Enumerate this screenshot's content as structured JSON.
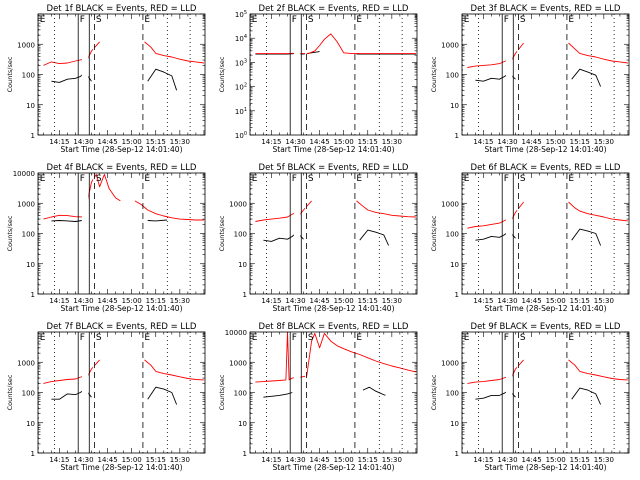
{
  "figure": {
    "colors": {
      "events": "#000000",
      "lld": "#ff0000",
      "axes": "#000000"
    },
    "common": {
      "xlabel": "Start Time (28-Sep-12 14:01:40)",
      "ylabel": "Counts/sec",
      "x_ticks": [
        "14:15",
        "14:30",
        "14:45",
        "15:00",
        "15:15",
        "15:30"
      ],
      "y_ticks": [
        "1",
        "10",
        "100",
        "1000",
        "10000"
      ],
      "marker_labels": [
        "E",
        "F",
        "S",
        "E"
      ]
    }
  },
  "chart_data": [
    {
      "type": "line",
      "title": "Det 1f BLACK = Events, RED = LLD",
      "x_axis": "time",
      "y_scale": "log",
      "ylim": [
        1,
        10000
      ],
      "ytick_values": [
        1,
        10,
        100,
        1000
      ],
      "series": [
        {
          "name": "Events",
          "color": "#000000",
          "x": [
            "14:10",
            "14:15",
            "14:20",
            "14:25",
            "14:28",
            "14:31",
            "14:35"
          ],
          "y": [
            60,
            55,
            70,
            75,
            85,
            120,
            60
          ]
        },
        {
          "name": "LLD",
          "color": "#ff0000",
          "x": [
            "14:05",
            "14:10",
            "14:15",
            "14:20",
            "14:25",
            "14:30",
            "14:32",
            "14:35",
            "14:40"
          ],
          "y": [
            200,
            260,
            230,
            240,
            280,
            320,
            280,
            600,
            1200
          ]
        },
        {
          "name": "Events",
          "color": "#000000",
          "x": [
            "15:10",
            "15:15",
            "15:20",
            "15:25",
            "15:28"
          ],
          "y": [
            60,
            150,
            120,
            90,
            30
          ]
        },
        {
          "name": "LLD",
          "color": "#ff0000",
          "x": [
            "15:08",
            "15:12",
            "15:15",
            "15:20",
            "15:25",
            "15:30",
            "15:35",
            "15:40",
            "15:45"
          ],
          "y": [
            1200,
            800,
            500,
            420,
            380,
            320,
            280,
            260,
            240
          ]
        }
      ]
    },
    {
      "type": "line",
      "title": "Det 2f BLACK = Events, RED = LLD",
      "x_axis": "time",
      "y_scale": "log",
      "ylim": [
        1,
        100000
      ],
      "ytick_values": [
        1,
        10,
        100,
        1000,
        10000,
        100000
      ],
      "ytick_labels": [
        "10^0",
        "10^1",
        "10^2",
        "10^3",
        "10^4",
        "10^5"
      ],
      "series": [
        {
          "name": "Events",
          "color": "#000000",
          "x": [
            "14:05",
            "14:15",
            "14:25",
            "14:30",
            "14:35",
            "14:40",
            "14:45"
          ],
          "y": [
            2200,
            2200,
            2200,
            2300,
            2200,
            2500,
            2800
          ]
        },
        {
          "name": "LLD",
          "color": "#ff0000",
          "x": [
            "14:05",
            "14:15",
            "14:25",
            "14:30",
            "14:35",
            "14:38",
            "14:42",
            "14:45",
            "14:48",
            "14:52",
            "14:56",
            "15:00",
            "15:05",
            "15:10"
          ],
          "y": [
            2300,
            2300,
            2300,
            2400,
            2300,
            2300,
            3000,
            5000,
            9000,
            15000,
            7000,
            2500,
            2300,
            2300
          ]
        },
        {
          "name": "Events",
          "color": "#000000",
          "x": [
            "15:08",
            "15:15",
            "15:25",
            "15:35",
            "15:45"
          ],
          "y": [
            2200,
            2200,
            2200,
            2200,
            2200
          ]
        },
        {
          "name": "LLD",
          "color": "#ff0000",
          "x": [
            "15:08",
            "15:15",
            "15:25",
            "15:35",
            "15:45"
          ],
          "y": [
            2300,
            2300,
            2300,
            2300,
            2300
          ]
        }
      ]
    },
    {
      "type": "line",
      "title": "Det 3f BLACK = Events, RED = LLD",
      "x_axis": "time",
      "y_scale": "log",
      "ylim": [
        1,
        10000
      ],
      "ytick_values": [
        1,
        10,
        100,
        1000
      ],
      "series": [
        {
          "name": "Events",
          "color": "#000000",
          "x": [
            "14:10",
            "14:15",
            "14:20",
            "14:25",
            "14:28",
            "14:31",
            "14:35"
          ],
          "y": [
            65,
            60,
            75,
            70,
            85,
            110,
            70
          ]
        },
        {
          "name": "LLD",
          "color": "#ff0000",
          "x": [
            "14:05",
            "14:10",
            "14:15",
            "14:20",
            "14:25",
            "14:30",
            "14:32",
            "14:35",
            "14:40"
          ],
          "y": [
            170,
            190,
            200,
            210,
            230,
            300,
            260,
            500,
            1100
          ]
        },
        {
          "name": "Events",
          "color": "#000000",
          "x": [
            "15:10",
            "15:15",
            "15:20",
            "15:25",
            "15:28"
          ],
          "y": [
            70,
            150,
            120,
            95,
            40
          ]
        },
        {
          "name": "LLD",
          "color": "#ff0000",
          "x": [
            "15:08",
            "15:12",
            "15:15",
            "15:20",
            "15:25",
            "15:30",
            "15:35",
            "15:40",
            "15:45"
          ],
          "y": [
            1100,
            700,
            500,
            420,
            380,
            320,
            280,
            260,
            240
          ]
        }
      ]
    },
    {
      "type": "line",
      "title": "Det 4f BLACK = Events, RED = LLD",
      "x_axis": "time",
      "y_scale": "log",
      "ylim": [
        1,
        10000
      ],
      "ytick_values": [
        1,
        10,
        100,
        1000,
        10000
      ],
      "series": [
        {
          "name": "Events",
          "color": "#000000",
          "x": [
            "14:10",
            "14:15",
            "14:20",
            "14:25",
            "14:29"
          ],
          "y": [
            260,
            270,
            260,
            250,
            270
          ]
        },
        {
          "name": "LLD",
          "color": "#ff0000",
          "x": [
            "14:05",
            "14:10",
            "14:15",
            "14:20",
            "14:25",
            "14:30",
            "14:32",
            "14:35",
            "14:38",
            "14:40",
            "14:43",
            "14:46",
            "14:50",
            "14:53"
          ],
          "y": [
            300,
            350,
            400,
            390,
            360,
            350,
            900,
            5000,
            9000,
            3500,
            9000,
            3000,
            1500,
            1200
          ]
        },
        {
          "name": "Events",
          "color": "#000000",
          "x": [
            "15:10",
            "15:15",
            "15:22"
          ],
          "y": [
            270,
            260,
            280
          ]
        },
        {
          "name": "LLD",
          "color": "#ff0000",
          "x": [
            "15:02",
            "15:06",
            "15:10",
            "15:15",
            "15:20",
            "15:25",
            "15:30",
            "15:35",
            "15:40",
            "15:45"
          ],
          "y": [
            1200,
            900,
            600,
            450,
            380,
            330,
            300,
            290,
            280,
            280
          ]
        }
      ]
    },
    {
      "type": "line",
      "title": "Det 5f BLACK = Events, RED = LLD",
      "x_axis": "time",
      "y_scale": "log",
      "ylim": [
        1,
        10000
      ],
      "ytick_values": [
        1,
        10,
        100,
        1000
      ],
      "series": [
        {
          "name": "Events",
          "color": "#000000",
          "x": [
            "14:10",
            "14:15",
            "14:20",
            "14:25",
            "14:28",
            "14:31",
            "14:35"
          ],
          "y": [
            60,
            55,
            70,
            65,
            80,
            110,
            65
          ]
        },
        {
          "name": "LLD",
          "color": "#ff0000",
          "x": [
            "14:05",
            "14:10",
            "14:15",
            "14:20",
            "14:25",
            "14:30",
            "14:32",
            "14:35",
            "14:40"
          ],
          "y": [
            250,
            280,
            300,
            320,
            350,
            500,
            380,
            600,
            1200
          ]
        },
        {
          "name": "Events",
          "color": "#000000",
          "x": [
            "15:10",
            "15:15",
            "15:20",
            "15:25",
            "15:28"
          ],
          "y": [
            60,
            130,
            110,
            90,
            40
          ]
        },
        {
          "name": "LLD",
          "color": "#ff0000",
          "x": [
            "15:08",
            "15:12",
            "15:15",
            "15:20",
            "15:25",
            "15:30",
            "15:35",
            "15:40",
            "15:45"
          ],
          "y": [
            1200,
            800,
            600,
            500,
            450,
            400,
            380,
            360,
            350
          ]
        }
      ]
    },
    {
      "type": "line",
      "title": "Det 6f BLACK = Events, RED = LLD",
      "x_axis": "time",
      "y_scale": "log",
      "ylim": [
        1,
        10000
      ],
      "ytick_values": [
        1,
        10,
        100,
        1000
      ],
      "series": [
        {
          "name": "Events",
          "color": "#000000",
          "x": [
            "14:10",
            "14:15",
            "14:20",
            "14:25",
            "14:28",
            "14:31",
            "14:35"
          ],
          "y": [
            60,
            65,
            80,
            75,
            90,
            120,
            70
          ]
        },
        {
          "name": "LLD",
          "color": "#ff0000",
          "x": [
            "14:05",
            "14:10",
            "14:15",
            "14:20",
            "14:25",
            "14:30",
            "14:32",
            "14:35",
            "14:40"
          ],
          "y": [
            150,
            170,
            180,
            200,
            220,
            300,
            250,
            500,
            1100
          ]
        },
        {
          "name": "Events",
          "color": "#000000",
          "x": [
            "15:10",
            "15:15",
            "15:20",
            "15:25",
            "15:28"
          ],
          "y": [
            60,
            140,
            120,
            100,
            40
          ]
        },
        {
          "name": "LLD",
          "color": "#ff0000",
          "x": [
            "15:08",
            "15:12",
            "15:15",
            "15:20",
            "15:25",
            "15:30",
            "15:35",
            "15:40",
            "15:45"
          ],
          "y": [
            1100,
            700,
            550,
            450,
            400,
            350,
            300,
            280,
            260
          ]
        }
      ]
    },
    {
      "type": "line",
      "title": "Det 7f BLACK = Events, RED = LLD",
      "x_axis": "time",
      "y_scale": "log",
      "ylim": [
        1,
        10000
      ],
      "ytick_values": [
        1,
        10,
        100,
        1000
      ],
      "series": [
        {
          "name": "Events",
          "color": "#000000",
          "x": [
            "14:10",
            "14:15",
            "14:20",
            "14:25",
            "14:28",
            "14:31",
            "14:35"
          ],
          "y": [
            60,
            60,
            90,
            85,
            100,
            130,
            70
          ]
        },
        {
          "name": "LLD",
          "color": "#ff0000",
          "x": [
            "14:05",
            "14:10",
            "14:15",
            "14:20",
            "14:25",
            "14:30",
            "14:32",
            "14:35",
            "14:40"
          ],
          "y": [
            200,
            230,
            250,
            270,
            280,
            350,
            300,
            600,
            1200
          ]
        },
        {
          "name": "Events",
          "color": "#000000",
          "x": [
            "15:10",
            "15:15",
            "15:20",
            "15:25",
            "15:28"
          ],
          "y": [
            60,
            150,
            130,
            100,
            40
          ]
        },
        {
          "name": "LLD",
          "color": "#ff0000",
          "x": [
            "15:08",
            "15:12",
            "15:15",
            "15:20",
            "15:25",
            "15:30",
            "15:35",
            "15:40",
            "15:45"
          ],
          "y": [
            1200,
            800,
            500,
            420,
            380,
            330,
            290,
            270,
            260
          ]
        }
      ]
    },
    {
      "type": "line",
      "title": "Det 8f BLACK = Events, RED = LLD",
      "x_axis": "time",
      "y_scale": "log",
      "ylim": [
        1,
        10000
      ],
      "ytick_values": [
        1,
        10,
        100,
        1000,
        10000
      ],
      "series": [
        {
          "name": "Events",
          "color": "#000000",
          "x": [
            "14:10",
            "14:15",
            "14:20",
            "14:25",
            "14:28"
          ],
          "y": [
            70,
            75,
            80,
            90,
            100
          ]
        },
        {
          "name": "LLD",
          "color": "#ff0000",
          "x": [
            "14:05",
            "14:10",
            "14:15",
            "14:20",
            "14:24",
            "14:25",
            "14:26",
            "14:28",
            "14:33",
            "14:37",
            "14:40",
            "14:42",
            "14:45",
            "14:48",
            "14:52",
            "14:56"
          ],
          "y": [
            220,
            230,
            240,
            250,
            260,
            10000,
            260,
            300,
            320,
            350,
            5000,
            9000,
            3000,
            9000,
            5000,
            3500
          ]
        },
        {
          "name": "Events",
          "color": "#000000",
          "x": [
            "15:12",
            "15:16",
            "15:20",
            "15:26"
          ],
          "y": [
            120,
            150,
            110,
            80
          ]
        },
        {
          "name": "LLD",
          "color": "#ff0000",
          "x": [
            "14:56",
            "15:00",
            "15:05",
            "15:10",
            "15:15",
            "15:20",
            "15:25",
            "15:30",
            "15:35",
            "15:40",
            "15:45"
          ],
          "y": [
            3500,
            2800,
            2200,
            1800,
            1400,
            1100,
            900,
            750,
            650,
            550,
            480
          ]
        }
      ]
    },
    {
      "type": "line",
      "title": "Det 9f BLACK = Events, RED = LLD",
      "x_axis": "time",
      "y_scale": "log",
      "ylim": [
        1,
        10000
      ],
      "ytick_values": [
        1,
        10,
        100,
        1000
      ],
      "series": [
        {
          "name": "Events",
          "color": "#000000",
          "x": [
            "14:10",
            "14:15",
            "14:20",
            "14:25",
            "14:28",
            "14:31",
            "14:35"
          ],
          "y": [
            60,
            65,
            80,
            80,
            95,
            120,
            70
          ]
        },
        {
          "name": "LLD",
          "color": "#ff0000",
          "x": [
            "14:05",
            "14:10",
            "14:15",
            "14:20",
            "14:25",
            "14:30",
            "14:32",
            "14:35",
            "14:40"
          ],
          "y": [
            200,
            220,
            230,
            250,
            270,
            330,
            280,
            600,
            1200
          ]
        },
        {
          "name": "Events",
          "color": "#000000",
          "x": [
            "15:10",
            "15:15",
            "15:20",
            "15:25",
            "15:28"
          ],
          "y": [
            60,
            140,
            120,
            90,
            40
          ]
        },
        {
          "name": "LLD",
          "color": "#ff0000",
          "x": [
            "15:08",
            "15:12",
            "15:15",
            "15:20",
            "15:25",
            "15:30",
            "15:35",
            "15:40",
            "15:45"
          ],
          "y": [
            1200,
            800,
            500,
            420,
            380,
            330,
            290,
            270,
            260
          ]
        }
      ]
    }
  ]
}
